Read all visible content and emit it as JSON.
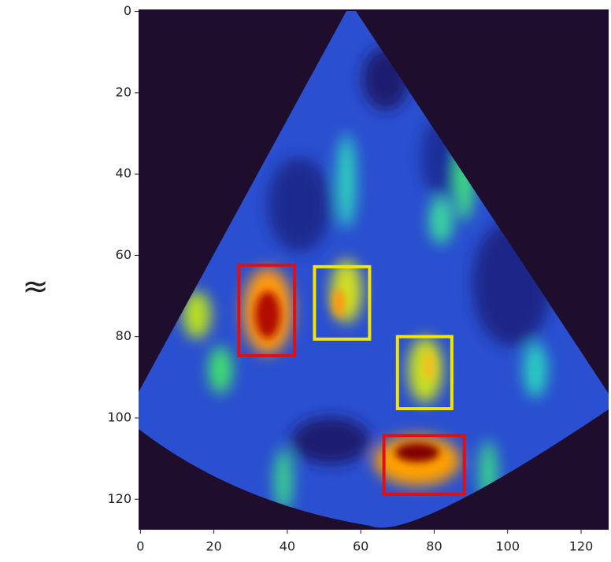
{
  "chart_data": {
    "type": "image",
    "side_label": "≈",
    "xlim": [
      -0.5,
      127.5
    ],
    "ylim": [
      127.5,
      -0.5
    ],
    "xticks": [
      0,
      20,
      40,
      60,
      80,
      100,
      120
    ],
    "yticks": [
      0,
      20,
      40,
      60,
      80,
      100,
      120
    ],
    "boxes": [
      {
        "color": "#e01010",
        "x0": 26.8,
        "y0": 62.4,
        "x1": 42,
        "y1": 84.7
      },
      {
        "color": "#f2e600",
        "x0": 47.4,
        "y0": 62.8,
        "x1": 62.4,
        "y1": 80.6
      },
      {
        "color": "#f2e600",
        "x0": 70,
        "y0": 80,
        "x1": 84.8,
        "y1": 97.7
      },
      {
        "color": "#e01010",
        "x0": 66.3,
        "y0": 104.3,
        "x1": 88.2,
        "y1": 118.8
      }
    ]
  }
}
